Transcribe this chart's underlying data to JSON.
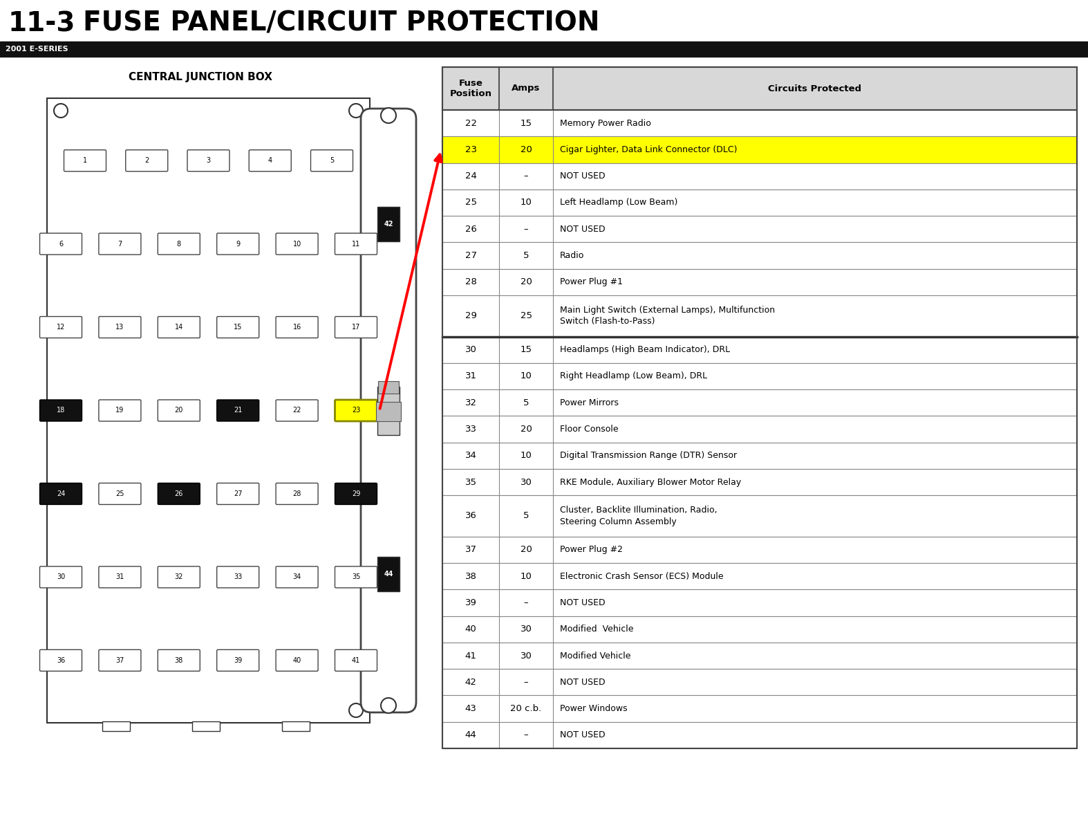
{
  "title_num": "11-3",
  "title_text": "FUSE PANEL/CIRCUIT PROTECTION",
  "subtitle": "2001 E-SERIES",
  "bg_color": "#f0f0f0",
  "table_data": [
    [
      "22",
      "15",
      "Memory Power Radio",
      false
    ],
    [
      "23",
      "20",
      "Cigar Lighter, Data Link Connector (DLC)",
      true
    ],
    [
      "24",
      "–",
      "NOT USED",
      false
    ],
    [
      "25",
      "10",
      "Left Headlamp (Low Beam)",
      false
    ],
    [
      "26",
      "–",
      "NOT USED",
      false
    ],
    [
      "27",
      "5",
      "Radio",
      false
    ],
    [
      "28",
      "20",
      "Power Plug #1",
      false
    ],
    [
      "29",
      "25",
      "Main Light Switch (External Lamps), Multifunction\nSwitch (Flash-to-Pass)",
      false
    ],
    [
      "30",
      "15",
      "Headlamps (High Beam Indicator), DRL",
      false
    ],
    [
      "31",
      "10",
      "Right Headlamp (Low Beam), DRL",
      false
    ],
    [
      "32",
      "5",
      "Power Mirrors",
      false
    ],
    [
      "33",
      "20",
      "Floor Console",
      false
    ],
    [
      "34",
      "10",
      "Digital Transmission Range (DTR) Sensor",
      false
    ],
    [
      "35",
      "30",
      "RKE Module, Auxiliary Blower Motor Relay",
      false
    ],
    [
      "36",
      "5",
      "Cluster, Backlite Illumination, Radio,\nSteering Column Assembly",
      false
    ],
    [
      "37",
      "20",
      "Power Plug #2",
      false
    ],
    [
      "38",
      "10",
      "Electronic Crash Sensor (ECS) Module",
      false
    ],
    [
      "39",
      "–",
      "NOT USED",
      false
    ],
    [
      "40",
      "30",
      "Modified  Vehicle",
      false
    ],
    [
      "41",
      "30",
      "Modified Vehicle",
      false
    ],
    [
      "42",
      "–",
      "NOT USED",
      false
    ],
    [
      "43",
      "20 c.b.",
      "Power Windows",
      false
    ],
    [
      "44",
      "–",
      "NOT USED",
      false
    ]
  ],
  "col_headers": [
    "Fuse\nPosition",
    "Amps",
    "Circuits Protected"
  ],
  "highlight_color": "#ffff00",
  "fuse_box_label": "CENTRAL JUNCTION BOX",
  "fuse_rows": [
    [
      1,
      2,
      3,
      4,
      5
    ],
    [
      6,
      7,
      8,
      9,
      10,
      11
    ],
    [
      12,
      13,
      14,
      15,
      16,
      17
    ],
    [
      18,
      19,
      20,
      21,
      22,
      23
    ],
    [
      24,
      25,
      26,
      27,
      28,
      29
    ],
    [
      30,
      31,
      32,
      33,
      34,
      35
    ],
    [
      36,
      37,
      38,
      39,
      40,
      41
    ]
  ],
  "black_fuses": [
    18,
    21,
    24,
    26,
    29
  ],
  "highlighted_fuse": 23,
  "white_bg_fuses": [
    19,
    20,
    22,
    25,
    27,
    28,
    29
  ]
}
